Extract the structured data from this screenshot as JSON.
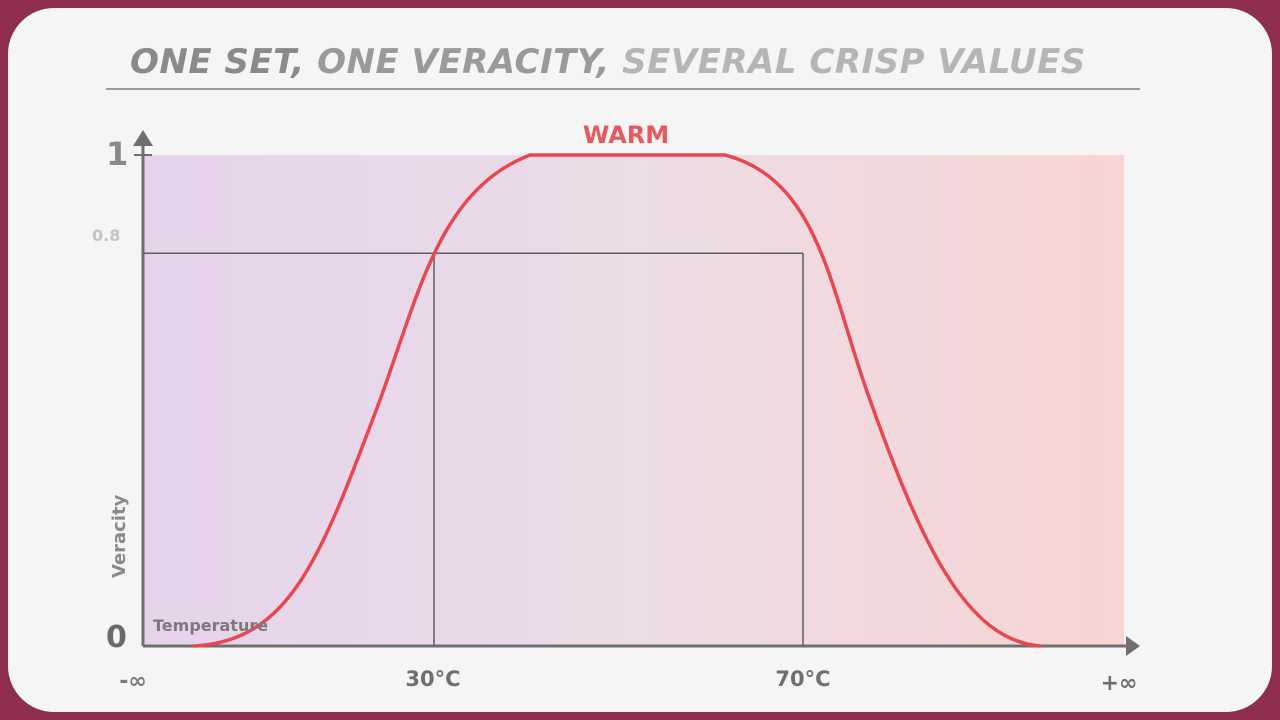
{
  "title": {
    "part1": "ONE SET,",
    "part2": "ONE VERACITY,",
    "part3": "SEVERAL CRISP VALUES"
  },
  "chart_data": {
    "type": "line",
    "series": [
      {
        "name": "WARM",
        "color": "#e8474f"
      }
    ],
    "x_tick_labels": [
      "-∞",
      "30°C",
      "70°C",
      "+∞"
    ],
    "y_tick_labels": [
      "0",
      "0.8",
      "1"
    ],
    "xlabel": "Temperature",
    "ylabel": "Veracity",
    "ylim": [
      0,
      1
    ],
    "membership_shape": "smooth trapezoid (rises from 0 to 1, plateau, falls back to 0)",
    "annotation": {
      "veracity": 0.8,
      "crisp_values": [
        "30°C",
        "70°C"
      ]
    },
    "grid": false,
    "legend": "none",
    "colors": {
      "curve": "#e8474f",
      "background_left": "#e6d3ea",
      "background_right": "#f8d4d2",
      "axis": "#6f6f6f",
      "frame": "#8f2e4f"
    }
  }
}
